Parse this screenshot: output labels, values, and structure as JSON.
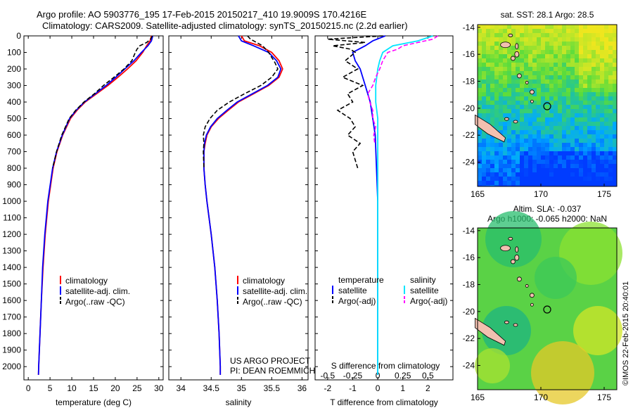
{
  "header": {
    "title_line1": "Argo profile: AO 5903776_195 17-Feb-2015 20150217_410 19.9009S 170.4216E",
    "title_line2": "Climatology: CARS2009. Satellite-adjusted climatology: synTS_20150215.nc (2.2d earlier)"
  },
  "colors": {
    "climatology": "#ff0000",
    "satellite": "#0000ff",
    "argo": "#000000",
    "sat_salinity": "#00e5ff",
    "argo_salinity": "#ff00ff",
    "land": "#f2c0b0"
  },
  "depth_axis": {
    "ylim": [
      0,
      2080
    ],
    "ticks": [
      0,
      100,
      200,
      300,
      400,
      500,
      600,
      700,
      800,
      900,
      1000,
      1100,
      1200,
      1300,
      1400,
      1500,
      1600,
      1700,
      1800,
      1900,
      2000
    ]
  },
  "chart_data": [
    {
      "id": "temperature",
      "type": "line",
      "xlabel": "temperature (deg C)",
      "xlim": [
        -1,
        31
      ],
      "xticks": [
        0,
        5,
        10,
        15,
        20,
        25,
        30
      ],
      "legend": [
        "climatology",
        "satellite-adj. clim.",
        "Argo(..raw -QC)"
      ],
      "series": [
        {
          "name": "climatology",
          "depth": [
            0,
            30,
            60,
            100,
            150,
            200,
            250,
            300,
            350,
            400,
            450,
            500,
            600,
            700,
            800,
            1000,
            1200,
            1400,
            1600,
            1800,
            2000,
            2050
          ],
          "values": [
            28.3,
            28,
            27.2,
            26.3,
            24.8,
            22.8,
            20.6,
            18.3,
            15.7,
            13.1,
            11.2,
            9.7,
            7.9,
            6.6,
            5.7,
            4.6,
            3.9,
            3.4,
            3.0,
            2.7,
            2.4,
            2.35
          ]
        },
        {
          "name": "satellite-adj. clim.",
          "depth": [
            0,
            30,
            60,
            100,
            150,
            200,
            250,
            300,
            350,
            400,
            450,
            500,
            600,
            700,
            800,
            1000,
            1200,
            1400,
            1600,
            1800,
            2000,
            2050
          ],
          "values": [
            28.6,
            28.3,
            27.5,
            26.0,
            24.3,
            22.2,
            20.1,
            17.9,
            15.4,
            12.9,
            11.0,
            9.5,
            7.8,
            6.5,
            5.6,
            4.5,
            3.8,
            3.3,
            3.0,
            2.7,
            2.4,
            2.35
          ]
        },
        {
          "name": "Argo(..raw -QC)",
          "depth": [
            0,
            20,
            40,
            60,
            80,
            100,
            150,
            200,
            250,
            300,
            350,
            400,
            450,
            500,
            600,
            700,
            800
          ],
          "values": [
            28.5,
            28.1,
            27.2,
            25.6,
            25.0,
            24.6,
            23.8,
            22.0,
            19.7,
            17.3,
            15.2,
            12.8,
            10.9,
            9.4,
            7.7,
            6.5,
            5.6
          ]
        }
      ]
    },
    {
      "id": "salinity",
      "type": "line",
      "xlabel": "salinity",
      "xlim": [
        33.8,
        36.1
      ],
      "xticks": [
        34,
        34.5,
        35,
        35.5,
        36
      ],
      "legend": [
        "climatology",
        "satellite-adj. clim.",
        "Argo(..raw -QC)"
      ],
      "series": [
        {
          "name": "climatology",
          "depth": [
            0,
            30,
            60,
            100,
            150,
            200,
            250,
            300,
            350,
            400,
            450,
            500,
            550,
            600,
            650,
            700,
            800,
            900,
            1000,
            1200,
            1400,
            1600,
            1800,
            2000,
            2050
          ],
          "values": [
            35.0,
            35.05,
            35.3,
            35.5,
            35.62,
            35.68,
            35.62,
            35.45,
            35.2,
            34.95,
            34.78,
            34.62,
            34.5,
            34.43,
            34.4,
            34.38,
            34.38,
            34.4,
            34.43,
            34.5,
            34.56,
            34.6,
            34.63,
            34.65,
            34.65
          ]
        },
        {
          "name": "satellite-adj. clim.",
          "depth": [
            0,
            30,
            60,
            100,
            150,
            200,
            250,
            300,
            350,
            400,
            450,
            500,
            550,
            600,
            650,
            700,
            800,
            900,
            1000,
            1200,
            1400,
            1600,
            1800,
            2000,
            2050
          ],
          "values": [
            34.95,
            35.0,
            35.2,
            35.45,
            35.58,
            35.65,
            35.6,
            35.43,
            35.18,
            34.93,
            34.76,
            34.6,
            34.49,
            34.42,
            34.39,
            34.38,
            34.38,
            34.4,
            34.43,
            34.5,
            34.56,
            34.6,
            34.63,
            34.65,
            34.65
          ]
        },
        {
          "name": "Argo(..raw -QC)",
          "depth": [
            0,
            20,
            40,
            60,
            80,
            100,
            130,
            160,
            200,
            250,
            300,
            350,
            400,
            450,
            500,
            550,
            600,
            650,
            700,
            800
          ],
          "values": [
            35.1,
            35.15,
            35.25,
            35.35,
            35.4,
            35.45,
            35.5,
            35.55,
            35.6,
            35.5,
            35.32,
            35.05,
            34.8,
            34.6,
            34.48,
            34.4,
            34.37,
            34.38,
            34.37,
            34.38
          ]
        }
      ]
    },
    {
      "id": "differences",
      "type": "line",
      "top_xlabel": "S difference from climatology",
      "top_xticks_labels": [
        "-0.5",
        "-0.25",
        "0",
        "0.25",
        "0.5"
      ],
      "top_xticks": [
        -0.5,
        -0.25,
        0,
        0.25,
        0.5
      ],
      "xlabel": "T difference from climatology",
      "xlim": [
        -2.5,
        3
      ],
      "xticks": [
        -2,
        -1,
        0,
        1,
        2
      ],
      "s_scale_per_T": 0.25,
      "legend_temperature": "temperature",
      "legend_salinity": "salinity",
      "legend_items": [
        "satellite",
        "Argo(-adj)",
        "satellite",
        "Argo(-adj)"
      ],
      "series": [
        {
          "name": "T satellite",
          "depth": [
            0,
            30,
            60,
            100,
            150,
            200,
            300,
            400,
            500,
            600,
            800,
            1000,
            1500,
            2000,
            2050
          ],
          "values": [
            0.3,
            -0.2,
            -0.5,
            -1.0,
            -0.9,
            -0.7,
            -0.5,
            -0.3,
            -0.2,
            -0.1,
            -0.05,
            0,
            0,
            0,
            0
          ]
        },
        {
          "name": "T Argo(-adj)",
          "depth": [
            0,
            20,
            40,
            60,
            80,
            100,
            150,
            200,
            250,
            300,
            350,
            400,
            450,
            500,
            550,
            600,
            650,
            700,
            750,
            800
          ],
          "values": [
            0.2,
            -2.0,
            -0.5,
            -1.8,
            -1.1,
            -0.9,
            -1.3,
            -0.8,
            -1.4,
            -0.6,
            -1.2,
            -1.0,
            -1.6,
            -1.1,
            -0.9,
            -1.2,
            -0.7,
            -1.0,
            -0.9,
            -0.8
          ]
        },
        {
          "name": "S satellite",
          "depth": [
            0,
            30,
            60,
            100,
            150,
            200,
            300,
            400,
            500,
            600,
            800,
            1000,
            1500,
            2000,
            2050
          ],
          "values": [
            0.55,
            0.4,
            0.15,
            0.05,
            0.02,
            0.0,
            -0.02,
            -0.02,
            0,
            0,
            0,
            0,
            0,
            0,
            0
          ]
        },
        {
          "name": "S Argo(-adj)",
          "depth": [
            0,
            20,
            40,
            60,
            80,
            100,
            150,
            200,
            250,
            300,
            350,
            400,
            450,
            500,
            550,
            600,
            650
          ],
          "values": [
            0.6,
            0.55,
            0.4,
            0.25,
            0.2,
            0.1,
            0.05,
            0.02,
            -0.02,
            -0.05,
            -0.1,
            -0.08,
            -0.05,
            -0.05,
            -0.02,
            -0.04,
            -0.03
          ]
        }
      ]
    },
    {
      "id": "sst_map",
      "type": "heatmap",
      "title": "sat. SST: 28.1  Argo: 28.5",
      "xlim": [
        165,
        176
      ],
      "ylim": [
        -25.8,
        -13.8
      ],
      "xticks": [
        165,
        170,
        175
      ],
      "yticks": [
        -14,
        -16,
        -18,
        -20,
        -22,
        -24
      ],
      "marker": {
        "lon": 170.42,
        "lat": -19.9
      }
    },
    {
      "id": "sla_map",
      "type": "heatmap",
      "title_line1": "Altim. SLA: -0.037",
      "title_line2": "Argo h1000: -0.065  h2000: NaN",
      "xlim": [
        165,
        176
      ],
      "ylim": [
        -25.8,
        -13.8
      ],
      "xticks": [
        165,
        170,
        175
      ],
      "yticks": [
        -14,
        -16,
        -18,
        -20,
        -22,
        -24
      ],
      "marker": {
        "lon": 170.42,
        "lat": -19.9
      }
    }
  ],
  "credits": {
    "project_line1": "US ARGO PROJECT",
    "project_line2": "PI: DEAN ROEMMICH",
    "watermark": "©IMOS 22-Feb-2015 20:40:01"
  }
}
